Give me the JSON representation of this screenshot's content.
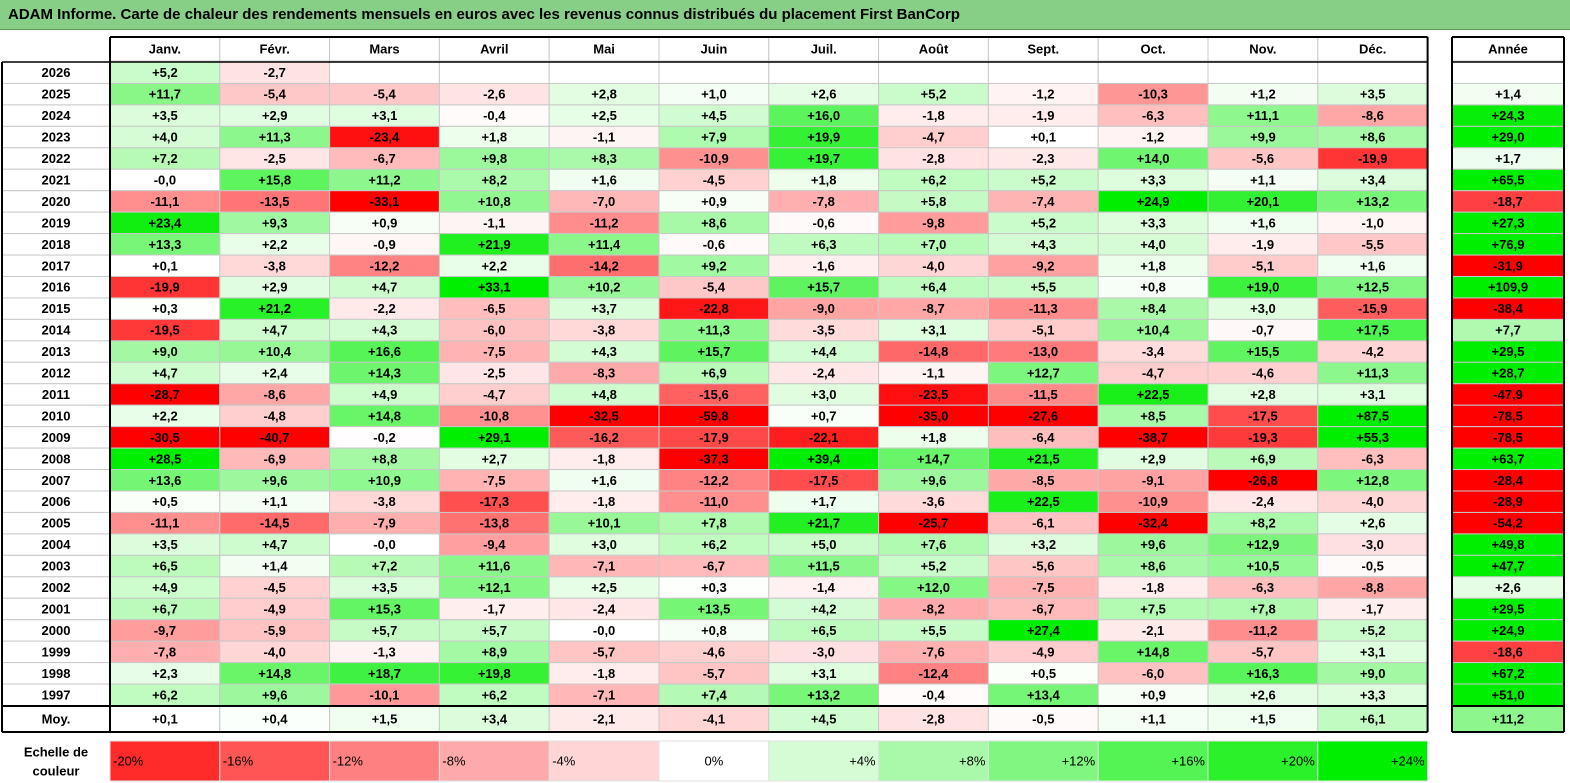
{
  "title": "ADAM Informe. Carte de chaleur des rendements mensuels en euros avec les revenus connus distribués du placement First BanCorp",
  "chart_data": {
    "type": "heatmap",
    "months": [
      "Janv.",
      "Févr.",
      "Mars",
      "Avril",
      "Mai",
      "Juin",
      "Juil.",
      "Août",
      "Sept.",
      "Oct.",
      "Nov.",
      "Déc."
    ],
    "year_label": "Année",
    "rows": [
      {
        "year": "2026",
        "values": [
          "+5,2",
          "-2,7",
          "",
          "",
          "",
          "",
          "",
          "",
          "",
          "",
          "",
          ""
        ],
        "annual": ""
      },
      {
        "year": "2025",
        "values": [
          "+11,7",
          "-5,4",
          "-5,4",
          "-2,6",
          "+2,8",
          "+1,0",
          "+2,6",
          "+5,2",
          "-1,2",
          "-10,3",
          "+1,2",
          "+3,5"
        ],
        "annual": "+1,4"
      },
      {
        "year": "2024",
        "values": [
          "+3,5",
          "+2,9",
          "+3,1",
          "-0,4",
          "+2,5",
          "+4,5",
          "+16,0",
          "-1,8",
          "-1,9",
          "-6,3",
          "+11,1",
          "-8,6"
        ],
        "annual": "+24,3"
      },
      {
        "year": "2023",
        "values": [
          "+4,0",
          "+11,3",
          "-23,4",
          "+1,8",
          "-1,1",
          "+7,9",
          "+19,9",
          "-4,7",
          "+0,1",
          "-1,2",
          "+9,9",
          "+8,6"
        ],
        "annual": "+29,0"
      },
      {
        "year": "2022",
        "values": [
          "+7,2",
          "-2,5",
          "-6,7",
          "+9,8",
          "+8,3",
          "-10,9",
          "+19,7",
          "-2,8",
          "-2,3",
          "+14,0",
          "-5,6",
          "-19,9"
        ],
        "annual": "+1,7"
      },
      {
        "year": "2021",
        "values": [
          "-0,0",
          "+15,8",
          "+11,2",
          "+8,2",
          "+1,6",
          "-4,5",
          "+1,8",
          "+6,2",
          "+5,2",
          "+3,3",
          "+1,1",
          "+3,4"
        ],
        "annual": "+65,5"
      },
      {
        "year": "2020",
        "values": [
          "-11,1",
          "-13,5",
          "-33,1",
          "+10,8",
          "-7,0",
          "+0,9",
          "-7,8",
          "+5,8",
          "-7,4",
          "+24,9",
          "+20,1",
          "+13,2"
        ],
        "annual": "-18,7"
      },
      {
        "year": "2019",
        "values": [
          "+23,4",
          "+9,3",
          "+0,9",
          "-1,1",
          "-11,2",
          "+8,6",
          "-0,6",
          "-9,8",
          "+5,2",
          "+3,3",
          "+1,6",
          "-1,0"
        ],
        "annual": "+27,3"
      },
      {
        "year": "2018",
        "values": [
          "+13,3",
          "+2,2",
          "-0,9",
          "+21,9",
          "+11,4",
          "-0,6",
          "+6,3",
          "+7,0",
          "+4,3",
          "+4,0",
          "-1,9",
          "-5,5"
        ],
        "annual": "+76,9"
      },
      {
        "year": "2017",
        "values": [
          "+0,1",
          "-3,8",
          "-12,2",
          "+2,2",
          "-14,2",
          "+9,2",
          "-1,6",
          "-4,0",
          "-9,2",
          "+1,8",
          "-5,1",
          "+1,6"
        ],
        "annual": "-31,9"
      },
      {
        "year": "2016",
        "values": [
          "-19,9",
          "+2,9",
          "+4,7",
          "+33,1",
          "+10,2",
          "-5,4",
          "+15,7",
          "+6,4",
          "+5,5",
          "+0,8",
          "+19,0",
          "+12,5"
        ],
        "annual": "+109,9"
      },
      {
        "year": "2015",
        "values": [
          "+0,3",
          "+21,2",
          "-2,2",
          "-6,5",
          "+3,7",
          "-22,8",
          "-9,0",
          "-8,7",
          "-11,3",
          "+8,4",
          "+3,0",
          "-15,9"
        ],
        "annual": "-38,4"
      },
      {
        "year": "2014",
        "values": [
          "-19,5",
          "+4,7",
          "+4,3",
          "-6,0",
          "-3,8",
          "+11,3",
          "-3,5",
          "+3,1",
          "-5,1",
          "+10,4",
          "-0,7",
          "+17,5"
        ],
        "annual": "+7,7"
      },
      {
        "year": "2013",
        "values": [
          "+9,0",
          "+10,4",
          "+16,6",
          "-7,5",
          "+4,3",
          "+15,7",
          "+4,4",
          "-14,8",
          "-13,0",
          "-3,4",
          "+15,5",
          "-4,2"
        ],
        "annual": "+29,5"
      },
      {
        "year": "2012",
        "values": [
          "+4,7",
          "+2,4",
          "+14,3",
          "-2,5",
          "-8,3",
          "+6,9",
          "-2,4",
          "-1,1",
          "+12,7",
          "-4,7",
          "-4,6",
          "+11,3"
        ],
        "annual": "+28,7"
      },
      {
        "year": "2011",
        "values": [
          "-28,7",
          "-8,6",
          "+4,9",
          "-4,7",
          "+4,8",
          "-15,6",
          "+3,0",
          "-23,5",
          "-11,5",
          "+22,5",
          "+2,8",
          "+3,1"
        ],
        "annual": "-47,9"
      },
      {
        "year": "2010",
        "values": [
          "+2,2",
          "-4,8",
          "+14,8",
          "-10,8",
          "-32,5",
          "-59,8",
          "+0,7",
          "-35,0",
          "-27,6",
          "+8,5",
          "-17,5",
          "+87,5"
        ],
        "annual": "-78,5"
      },
      {
        "year": "2009",
        "values": [
          "-30,5",
          "-40,7",
          "-0,2",
          "+29,1",
          "-16,2",
          "-17,9",
          "-22,1",
          "+1,8",
          "-6,4",
          "-38,7",
          "-19,3",
          "+55,3"
        ],
        "annual": "-78,5"
      },
      {
        "year": "2008",
        "values": [
          "+28,5",
          "-6,9",
          "+8,8",
          "+2,7",
          "-1,8",
          "-37,3",
          "+39,4",
          "+14,7",
          "+21,5",
          "+2,9",
          "+6,9",
          "-6,3"
        ],
        "annual": "+63,7"
      },
      {
        "year": "2007",
        "values": [
          "+13,6",
          "+9,6",
          "+10,9",
          "-7,5",
          "+1,6",
          "-12,2",
          "-17,5",
          "+9,6",
          "-8,5",
          "-9,1",
          "-26,8",
          "+12,8"
        ],
        "annual": "-28,4"
      },
      {
        "year": "2006",
        "values": [
          "+0,5",
          "+1,1",
          "-3,8",
          "-17,3",
          "-1,8",
          "-11,0",
          "+1,7",
          "-3,6",
          "+22,5",
          "-10,9",
          "-2,4",
          "-4,0"
        ],
        "annual": "-28,9"
      },
      {
        "year": "2005",
        "values": [
          "-11,1",
          "-14,5",
          "-7,9",
          "-13,8",
          "+10,1",
          "+7,8",
          "+21,7",
          "-25,7",
          "-6,1",
          "-32,4",
          "+8,2",
          "+2,6"
        ],
        "annual": "-54,2"
      },
      {
        "year": "2004",
        "values": [
          "+3,5",
          "+4,7",
          "-0,0",
          "-9,4",
          "+3,0",
          "+6,2",
          "+5,0",
          "+7,6",
          "+3,2",
          "+9,6",
          "+12,9",
          "-3,0"
        ],
        "annual": "+49,8"
      },
      {
        "year": "2003",
        "values": [
          "+6,5",
          "+1,4",
          "+7,2",
          "+11,6",
          "-7,1",
          "-6,7",
          "+11,5",
          "+5,2",
          "-5,6",
          "+8,6",
          "+10,5",
          "-0,5"
        ],
        "annual": "+47,7"
      },
      {
        "year": "2002",
        "values": [
          "+4,9",
          "-4,5",
          "+3,5",
          "+12,1",
          "+2,5",
          "+0,3",
          "-1,4",
          "+12,0",
          "-7,5",
          "-1,8",
          "-6,3",
          "-8,8"
        ],
        "annual": "+2,6"
      },
      {
        "year": "2001",
        "values": [
          "+6,7",
          "-4,9",
          "+15,3",
          "-1,7",
          "-2,4",
          "+13,5",
          "+4,2",
          "-8,2",
          "-6,7",
          "+7,5",
          "+7,8",
          "-1,7"
        ],
        "annual": "+29,5"
      },
      {
        "year": "2000",
        "values": [
          "-9,7",
          "-5,9",
          "+5,7",
          "+5,7",
          "-0,0",
          "+0,8",
          "+6,5",
          "+5,5",
          "+27,4",
          "-2,1",
          "-11,2",
          "+5,2"
        ],
        "annual": "+24,9"
      },
      {
        "year": "1999",
        "values": [
          "-7,8",
          "-4,0",
          "-1,3",
          "+8,9",
          "-5,7",
          "-4,6",
          "-3,0",
          "-7,6",
          "-4,9",
          "+14,8",
          "-5,7",
          "+3,1"
        ],
        "annual": "-18,6"
      },
      {
        "year": "1998",
        "values": [
          "+2,3",
          "+14,8",
          "+18,7",
          "+19,8",
          "-1,8",
          "-5,7",
          "+3,1",
          "-12,4",
          "+0,5",
          "-6,0",
          "+16,3",
          "+9,0"
        ],
        "annual": "+67,2"
      },
      {
        "year": "1997",
        "values": [
          "+6,2",
          "+9,6",
          "-10,1",
          "+6,2",
          "-7,1",
          "+7,4",
          "+13,2",
          "-0,4",
          "+13,4",
          "+0,9",
          "+2,6",
          "+3,3"
        ],
        "annual": "+51,0"
      }
    ],
    "average": {
      "label": "Moy.",
      "values": [
        "+0,1",
        "+0,4",
        "+1,5",
        "+3,4",
        "-2,1",
        "-4,1",
        "+4,5",
        "-2,8",
        "-0,5",
        "+1,1",
        "+1,5",
        "+6,1"
      ],
      "annual": "+11,2"
    },
    "scale": {
      "label_line1": "Echelle de",
      "label_line2": "couleur",
      "steps": [
        "-20%",
        "-16%",
        "-12%",
        "-8%",
        "-4%",
        "0%",
        "+4%",
        "+8%",
        "+12%",
        "+16%",
        "+20%",
        "+24%"
      ],
      "step_values": [
        -20,
        -16,
        -12,
        -8,
        -4,
        0,
        4,
        8,
        12,
        16,
        20,
        24
      ]
    },
    "colors": {
      "negative_max": "#ff0000",
      "neutral": "#ffffff",
      "positive_max": "#00ee00",
      "title_bg": "#87cf87"
    }
  }
}
